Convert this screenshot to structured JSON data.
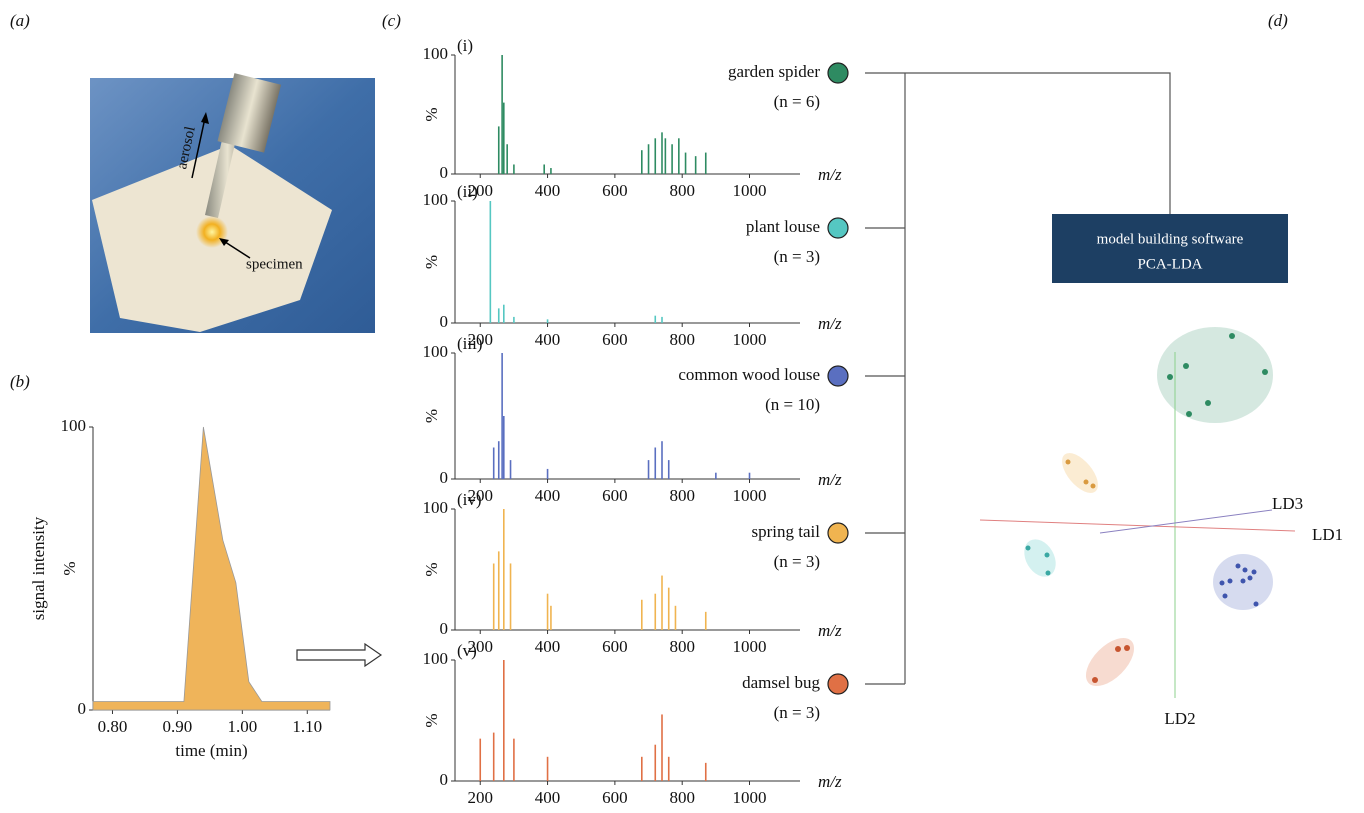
{
  "panel_labels": [
    "(a)",
    "(b)",
    "(c)",
    "(d)"
  ],
  "photo": {
    "annotations": [
      "aerosol",
      "specimen"
    ]
  },
  "chart_data": [
    {
      "type": "area",
      "ylabel": "signal intensity",
      "yunit": "%",
      "xlabel": "time (min)",
      "color": "#efb45a",
      "x": [
        0.77,
        0.8,
        0.85,
        0.9,
        0.91,
        0.94,
        0.97,
        0.99,
        1.01,
        1.03,
        1.06,
        1.1,
        1.135
      ],
      "values": [
        3,
        3,
        3,
        3,
        3,
        100,
        60,
        45,
        10,
        3,
        3,
        3,
        3
      ],
      "xlim": [
        0.77,
        1.135
      ],
      "ylim": [
        0,
        100
      ],
      "xticks": [
        {
          "value": 0.8,
          "label": "0.80"
        },
        {
          "value": 0.9,
          "label": "0.90"
        },
        {
          "value": 1.0,
          "label": "1.00"
        },
        {
          "value": 1.1,
          "label": "1.10"
        }
      ],
      "yticks": [
        0,
        100
      ]
    },
    {
      "type": "spectrum",
      "title": "(i)",
      "name": "garden spider",
      "n_label": "(n = 6)",
      "color": "#2e8b62",
      "yunit": "%",
      "xlabel": "m/z",
      "x": [
        255,
        265,
        270,
        280,
        300,
        390,
        410,
        680,
        700,
        720,
        740,
        750,
        770,
        790,
        810,
        840,
        870
      ],
      "values": [
        40,
        100,
        60,
        25,
        8,
        8,
        5,
        20,
        25,
        30,
        35,
        30,
        25,
        30,
        18,
        15,
        18
      ],
      "xlim": [
        125,
        1150
      ],
      "ylim": [
        0,
        100
      ],
      "xticks": [
        200,
        400,
        600,
        800,
        1000
      ],
      "yticks": [
        0,
        100
      ]
    },
    {
      "type": "spectrum",
      "title": "(ii)",
      "name": "plant louse",
      "n_label": "(n = 3)",
      "color": "#55c7c2",
      "yunit": "%",
      "xlabel": "m/z",
      "x": [
        230,
        255,
        270,
        300,
        400,
        720,
        740
      ],
      "values": [
        100,
        12,
        15,
        5,
        3,
        6,
        5
      ],
      "xlim": [
        125,
        1150
      ],
      "ylim": [
        0,
        100
      ],
      "xticks": [
        200,
        400,
        600,
        800,
        1000
      ],
      "yticks": [
        0,
        100
      ]
    },
    {
      "type": "spectrum",
      "title": "(iii)",
      "name": "common wood louse",
      "n_label": "(n = 10)",
      "color": "#5a6fc0",
      "yunit": "%",
      "xlabel": "m/z",
      "x": [
        240,
        255,
        265,
        270,
        290,
        400,
        700,
        720,
        740,
        760,
        900,
        1000
      ],
      "values": [
        25,
        30,
        100,
        50,
        15,
        8,
        15,
        25,
        30,
        15,
        5,
        5
      ],
      "xlim": [
        125,
        1150
      ],
      "ylim": [
        0,
        100
      ],
      "xticks": [
        200,
        400,
        600,
        800,
        1000
      ],
      "yticks": [
        0,
        100
      ]
    },
    {
      "type": "spectrum",
      "title": "(iv)",
      "name": "spring tail",
      "n_label": "(n = 3)",
      "color": "#f0b450",
      "yunit": "%",
      "xlabel": "m/z",
      "x": [
        240,
        255,
        270,
        290,
        400,
        410,
        680,
        720,
        740,
        760,
        780,
        870
      ],
      "values": [
        55,
        65,
        100,
        55,
        30,
        20,
        25,
        30,
        45,
        35,
        20,
        15
      ],
      "xlim": [
        125,
        1150
      ],
      "ylim": [
        0,
        100
      ],
      "xticks": [
        200,
        400,
        600,
        800,
        1000
      ],
      "yticks": [
        0,
        100
      ]
    },
    {
      "type": "spectrum",
      "title": "(v)",
      "name": "damsel bug",
      "n_label": "(n = 3)",
      "color": "#e07045",
      "yunit": "%",
      "xlabel": "m/z",
      "x": [
        200,
        240,
        270,
        300,
        400,
        680,
        720,
        740,
        760,
        870
      ],
      "values": [
        35,
        40,
        100,
        35,
        20,
        20,
        30,
        55,
        20,
        15
      ],
      "xlim": [
        125,
        1150
      ],
      "ylim": [
        0,
        100
      ],
      "xticks": [
        200,
        400,
        600,
        800,
        1000
      ],
      "yticks": [
        0,
        100
      ]
    }
  ],
  "model": {
    "box": [
      "model building software",
      "PCA-LDA"
    ],
    "axes": [
      "LD1",
      "LD2",
      "LD3"
    ]
  }
}
